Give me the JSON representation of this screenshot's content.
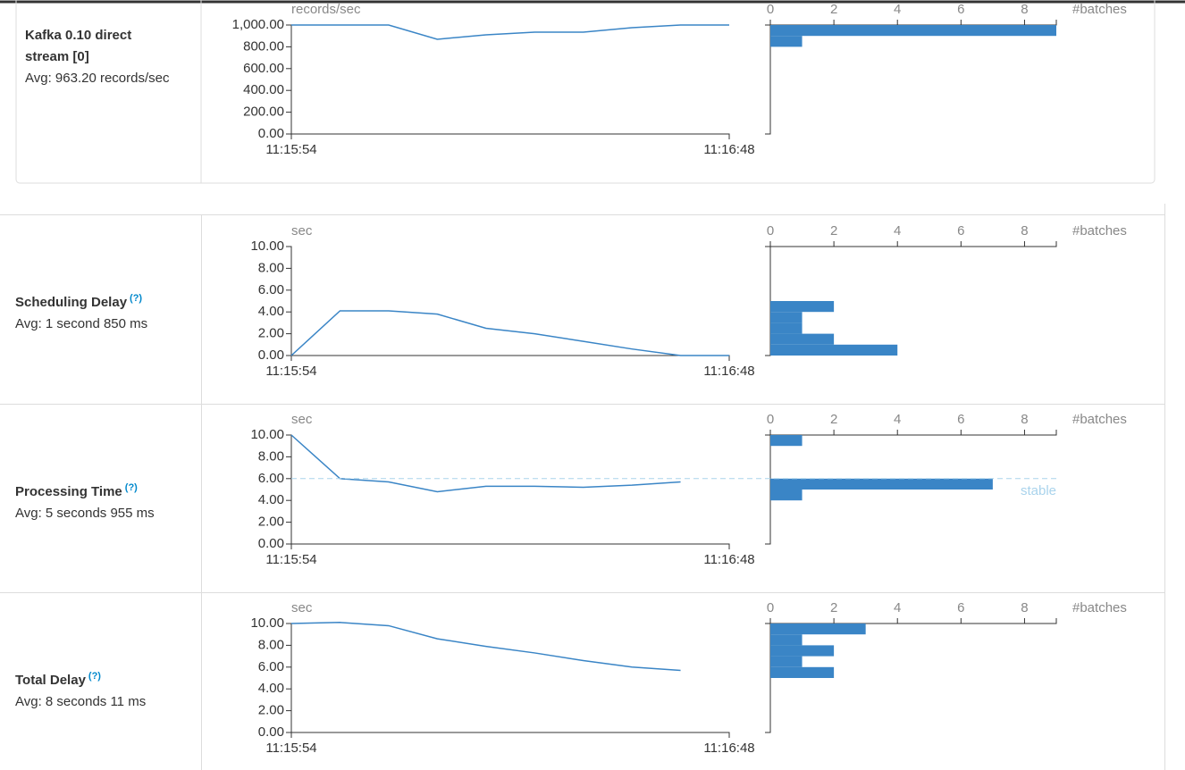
{
  "rows": [
    {
      "title": "Kafka 0.10 direct stream [0]",
      "avg": "Avg: 963.20 records/sec",
      "timeline": {
        "type": "line",
        "unit": "records/sec",
        "color": "#3a85c6",
        "x": [
          "11:15:54",
          "11:16:00",
          "11:16:06",
          "11:16:12",
          "11:16:18",
          "11:16:24",
          "11:16:30",
          "11:16:36",
          "11:16:42",
          "11:16:48"
        ],
        "values": [
          1000,
          1000,
          1000,
          869,
          910,
          934,
          934,
          975,
          1000,
          1000
        ],
        "xlim": [
          "11:15:54",
          "11:16:48"
        ],
        "xticks": [
          "11:15:54",
          "11:16:48"
        ],
        "ylim": [
          0,
          1000
        ],
        "yticks": [
          {
            "value": 0,
            "label": "0.00"
          },
          {
            "value": 200,
            "label": "200.00"
          },
          {
            "value": 400,
            "label": "400.00"
          },
          {
            "value": 600,
            "label": "600.00"
          },
          {
            "value": 800,
            "label": "800.00"
          },
          {
            "value": 1000,
            "label": "1,000.00"
          }
        ]
      },
      "histogram": {
        "type": "histogram",
        "axis_label": "#batches",
        "color": "#3a85c6",
        "bins": [
          800,
          900,
          1000
        ],
        "values": [
          1,
          9
        ],
        "xlim": [
          0,
          9
        ],
        "xticks": [
          0,
          2,
          4,
          6,
          8
        ]
      }
    },
    {
      "title": "Scheduling Delay",
      "help": "(?)",
      "avg": "Avg: 1 second 850 ms",
      "timeline": {
        "type": "line",
        "unit": "sec",
        "color": "#3a85c6",
        "x": [
          "11:15:54",
          "11:16:00",
          "11:16:06",
          "11:16:12",
          "11:16:18",
          "11:16:24",
          "11:16:30",
          "11:16:36",
          "11:16:42",
          "11:16:48"
        ],
        "values": [
          0,
          4.1,
          4.1,
          3.8,
          2.5,
          2.0,
          1.3,
          0.6,
          0,
          0
        ],
        "xlim": [
          "11:15:54",
          "11:16:48"
        ],
        "xticks": [
          "11:15:54",
          "11:16:48"
        ],
        "ylim": [
          0,
          10
        ],
        "yticks": [
          {
            "value": 0,
            "label": "0.00"
          },
          {
            "value": 2,
            "label": "2.00"
          },
          {
            "value": 4,
            "label": "4.00"
          },
          {
            "value": 6,
            "label": "6.00"
          },
          {
            "value": 8,
            "label": "8.00"
          },
          {
            "value": 10,
            "label": "10.00"
          }
        ]
      },
      "histogram": {
        "type": "histogram",
        "axis_label": "#batches",
        "color": "#3a85c6",
        "bins": [
          0,
          1,
          2,
          3,
          4,
          5
        ],
        "values": [
          4,
          2,
          1,
          1,
          2
        ],
        "xlim": [
          0,
          9
        ],
        "xticks": [
          0,
          2,
          4,
          6,
          8
        ]
      }
    },
    {
      "title": "Processing Time",
      "help": "(?)",
      "avg": "Avg: 5 seconds 955 ms",
      "stable": {
        "value": 6,
        "label": "stable"
      },
      "timeline": {
        "type": "line",
        "unit": "sec",
        "color": "#3a85c6",
        "x": [
          "11:15:54",
          "11:16:00",
          "11:16:06",
          "11:16:12",
          "11:16:18",
          "11:16:24",
          "11:16:30",
          "11:16:36",
          "11:16:42"
        ],
        "values": [
          10.0,
          6.0,
          5.7,
          4.8,
          5.3,
          5.3,
          5.2,
          5.4,
          5.7
        ],
        "xlim": [
          "11:15:54",
          "11:16:48"
        ],
        "xticks": [
          "11:15:54",
          "11:16:48"
        ],
        "ylim": [
          0,
          10
        ],
        "yticks": [
          {
            "value": 0,
            "label": "0.00"
          },
          {
            "value": 2,
            "label": "2.00"
          },
          {
            "value": 4,
            "label": "4.00"
          },
          {
            "value": 6,
            "label": "6.00"
          },
          {
            "value": 8,
            "label": "8.00"
          },
          {
            "value": 10,
            "label": "10.00"
          }
        ]
      },
      "histogram": {
        "type": "histogram",
        "axis_label": "#batches",
        "color": "#3a85c6",
        "bins": [
          4,
          5,
          6,
          7,
          8,
          9,
          10
        ],
        "values": [
          1,
          7,
          0,
          0,
          0,
          1
        ],
        "xlim": [
          0,
          9
        ],
        "xticks": [
          0,
          2,
          4,
          6,
          8
        ]
      }
    },
    {
      "title": "Total Delay",
      "help": "(?)",
      "avg": "Avg: 8 seconds 11 ms",
      "timeline": {
        "type": "line",
        "unit": "sec",
        "color": "#3a85c6",
        "x": [
          "11:15:54",
          "11:16:00",
          "11:16:06",
          "11:16:12",
          "11:16:18",
          "11:16:24",
          "11:16:30",
          "11:16:36",
          "11:16:42"
        ],
        "values": [
          10.0,
          10.1,
          9.8,
          8.6,
          7.9,
          7.3,
          6.6,
          6.0,
          5.7
        ],
        "xlim": [
          "11:15:54",
          "11:16:48"
        ],
        "xticks": [
          "11:15:54",
          "11:16:48"
        ],
        "ylim": [
          0,
          10
        ],
        "yticks": [
          {
            "value": 0,
            "label": "0.00"
          },
          {
            "value": 2,
            "label": "2.00"
          },
          {
            "value": 4,
            "label": "4.00"
          },
          {
            "value": 6,
            "label": "6.00"
          },
          {
            "value": 8,
            "label": "8.00"
          },
          {
            "value": 10,
            "label": "10.00"
          }
        ]
      },
      "histogram": {
        "type": "histogram",
        "axis_label": "#batches",
        "color": "#3a85c6",
        "bins": [
          5,
          6,
          7,
          8,
          9,
          10
        ],
        "values": [
          2,
          1,
          2,
          1,
          3
        ],
        "xlim": [
          0,
          9
        ],
        "xticks": [
          0,
          2,
          4,
          6,
          8
        ]
      }
    }
  ]
}
